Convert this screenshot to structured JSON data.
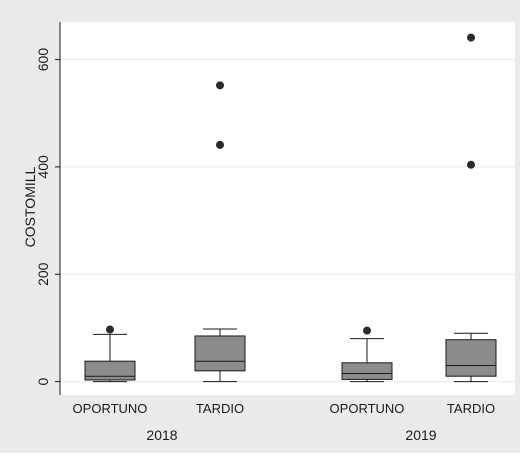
{
  "chart_data": {
    "type": "box",
    "ylabel": "COSTOMILL",
    "yticks": [
      0,
      200,
      400,
      600
    ],
    "ylim": [
      -25,
      670
    ],
    "grid": true,
    "groups": [
      {
        "label": "2018",
        "boxes": [
          {
            "category": "OPORTUNO",
            "whisker_low": 0,
            "q1": 3,
            "median": 10,
            "q3": 38,
            "whisker_high": 88,
            "outliers": [
              97
            ]
          },
          {
            "category": "TARDIO",
            "whisker_low": 0,
            "q1": 20,
            "median": 38,
            "q3": 85,
            "whisker_high": 98,
            "outliers": [
              441,
              552
            ]
          }
        ]
      },
      {
        "label": "2019",
        "boxes": [
          {
            "category": "OPORTUNO",
            "whisker_low": 0,
            "q1": 4,
            "median": 15,
            "q3": 35,
            "whisker_high": 80,
            "outliers": [
              95
            ]
          },
          {
            "category": "TARDIO",
            "whisker_low": 0,
            "q1": 10,
            "median": 30,
            "q3": 78,
            "whisker_high": 90,
            "outliers": [
              404,
              641
            ]
          }
        ]
      }
    ],
    "colors": {
      "outer_background": "#eaeaea",
      "plot_background": "#ffffff",
      "box_fill": "#8c8c8c",
      "line": "#1a1a1a",
      "grid": "#e9e9e9"
    }
  }
}
